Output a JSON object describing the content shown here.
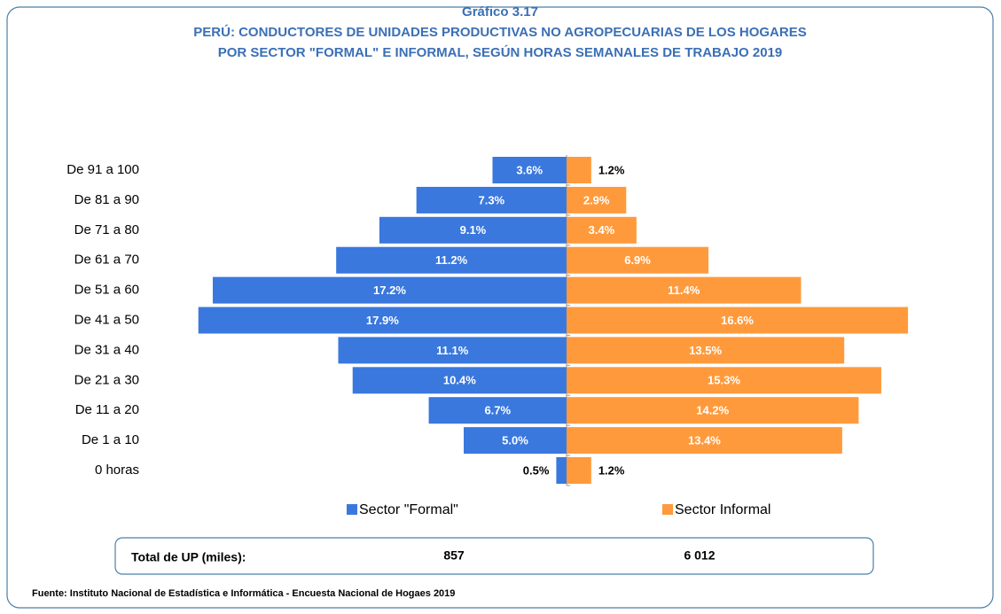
{
  "chart_data": {
    "type": "butterfly_bar",
    "title": "Gráfico 3.17",
    "subtitle": [
      "PERÚ: CONDUCTORES DE UNIDADES PRODUCTIVAS NO AGROPECUARIAS DE LOS HOGARES",
      "POR SECTOR \"FORMAL\" E INFORMAL, SEGÚN HORAS SEMANALES DE TRABAJO  2019"
    ],
    "categories": [
      "De 91 a 100",
      "De 81 a 90",
      "De 71 a 80",
      "De 61 a 70",
      "De 51 a 60",
      "De 41 a 50",
      "De 31 a 40",
      "De 21 a 30",
      "De 11 a 20",
      "De 1 a 10",
      "0 horas"
    ],
    "series": [
      {
        "name": "Sector \"Formal\"",
        "color": "#3a78de",
        "side": "left",
        "values": [
          3.6,
          7.3,
          9.1,
          11.2,
          17.2,
          17.9,
          11.1,
          10.4,
          6.7,
          5.0,
          0.5
        ],
        "value_labels": [
          "3.6%",
          "7.3%",
          "9.1%",
          "11.2%",
          "17.2%",
          "17.9%",
          "11.1%",
          "10.4%",
          "6.7%",
          "5.0%",
          "0.5%"
        ]
      },
      {
        "name": "Sector Informal",
        "color": "#ff9a3c",
        "side": "right",
        "values": [
          1.2,
          2.9,
          3.4,
          6.9,
          11.4,
          16.6,
          13.5,
          15.3,
          14.2,
          13.4,
          1.2
        ],
        "value_labels": [
          "1.2%",
          "2.9%",
          "3.4%",
          "6.9%",
          "11.4%",
          "16.6%",
          "13.5%",
          "15.3%",
          "14.2%",
          "13.4%",
          "1.2%"
        ]
      }
    ],
    "totals": {
      "label": "Total de UP (miles):",
      "values": [
        857,
        6012
      ],
      "value_labels": [
        "857",
        "6 012"
      ]
    },
    "source": "Fuente: Instituto Nacional de Estadística e Informática - Encuesta Nacional de Hogaes 2019"
  }
}
